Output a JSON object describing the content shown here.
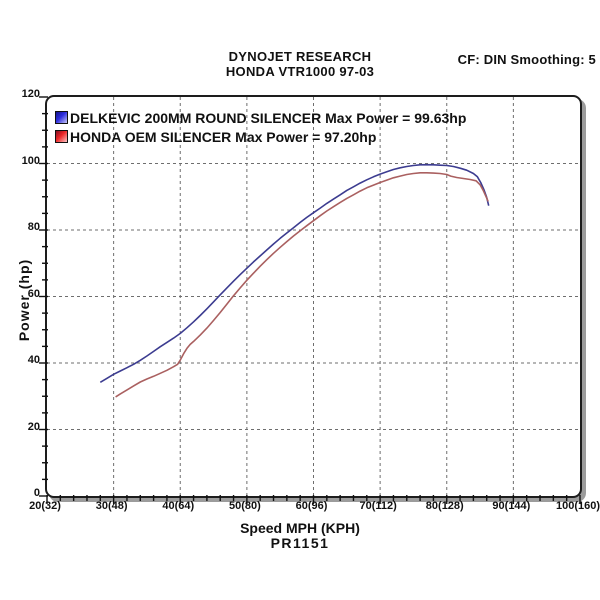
{
  "header": {
    "title_line1": "DYNOJET RESEARCH",
    "title_line2": "HONDA VTR1000 97-03",
    "cf_text": "CF: DIN  Smoothing: 5"
  },
  "legend": [
    {
      "label": "DELKEVIC 200MM ROUND SILENCER Max Power = 99.63hp",
      "swatch_color": "#2323dd",
      "swatch_name": "blue-series-swatch"
    },
    {
      "label": "HONDA OEM SILENCER Max Power = 97.20hp",
      "swatch_color": "#ee1c1c",
      "swatch_name": "red-series-swatch"
    }
  ],
  "footer": {
    "x_axis_title": "Speed MPH (KPH)",
    "run_id": "PR1151"
  },
  "chart_data": {
    "type": "line",
    "title": "DYNOJET RESEARCH — HONDA VTR1000 97-03",
    "xlabel": "Speed MPH (KPH)",
    "ylabel": "Power (hp)",
    "xlim": [
      20,
      100
    ],
    "ylim": [
      0,
      120
    ],
    "grid": "dashed",
    "legend_position": "top-left",
    "x_minor_step": 2,
    "y_minor_step": 5,
    "xticks": [
      {
        "mph": 20,
        "label": "20(32)"
      },
      {
        "mph": 30,
        "label": "30(48)"
      },
      {
        "mph": 40,
        "label": "40(64)"
      },
      {
        "mph": 50,
        "label": "50(80)"
      },
      {
        "mph": 60,
        "label": "60(96)"
      },
      {
        "mph": 70,
        "label": "70(112)"
      },
      {
        "mph": 80,
        "label": "80(128)"
      },
      {
        "mph": 90,
        "label": "90(144)"
      },
      {
        "mph": 100,
        "label": "100(160)"
      }
    ],
    "yticks": [
      0,
      20,
      40,
      60,
      80,
      100,
      120
    ],
    "series": [
      {
        "name": "DELKEVIC 200MM ROUND SILENCER",
        "max_power_hp": 99.63,
        "color": "#3c3c90",
        "points": [
          [
            28,
            34.2
          ],
          [
            29,
            35.4
          ],
          [
            30,
            36.6
          ],
          [
            31,
            37.6
          ],
          [
            32,
            38.6
          ],
          [
            33,
            39.6
          ],
          [
            34,
            40.8
          ],
          [
            35,
            42.1
          ],
          [
            36,
            43.5
          ],
          [
            37,
            44.9
          ],
          [
            38,
            46.2
          ],
          [
            39,
            47.5
          ],
          [
            40,
            48.9
          ],
          [
            41,
            50.6
          ],
          [
            42,
            52.4
          ],
          [
            43,
            54.3
          ],
          [
            44,
            56.3
          ],
          [
            45,
            58.4
          ],
          [
            46,
            60.5
          ],
          [
            47,
            62.6
          ],
          [
            48,
            64.6
          ],
          [
            49,
            66.6
          ],
          [
            50,
            68.5
          ],
          [
            51,
            70.4
          ],
          [
            52,
            72.2
          ],
          [
            53,
            74.0
          ],
          [
            54,
            75.8
          ],
          [
            55,
            77.5
          ],
          [
            56,
            79.1
          ],
          [
            57,
            80.7
          ],
          [
            58,
            82.3
          ],
          [
            59,
            83.8
          ],
          [
            60,
            85.2
          ],
          [
            61,
            86.6
          ],
          [
            62,
            88.0
          ],
          [
            63,
            89.3
          ],
          [
            64,
            90.6
          ],
          [
            65,
            91.9
          ],
          [
            66,
            93.0
          ],
          [
            67,
            94.1
          ],
          [
            68,
            95.1
          ],
          [
            69,
            96.0
          ],
          [
            70,
            96.8
          ],
          [
            71,
            97.5
          ],
          [
            72,
            98.2
          ],
          [
            73,
            98.7
          ],
          [
            74,
            99.1
          ],
          [
            75,
            99.4
          ],
          [
            76,
            99.6
          ],
          [
            77,
            99.63
          ],
          [
            78,
            99.6
          ],
          [
            79,
            99.5
          ],
          [
            80,
            99.4
          ],
          [
            81,
            99.1
          ],
          [
            82,
            98.6
          ],
          [
            83,
            98.0
          ],
          [
            84,
            97.0
          ],
          [
            84.6,
            96.0
          ],
          [
            85.1,
            94.3
          ],
          [
            85.6,
            92.0
          ],
          [
            86.0,
            89.8
          ],
          [
            86.3,
            87.3
          ]
        ]
      },
      {
        "name": "HONDA OEM SILENCER",
        "max_power_hp": 97.2,
        "color": "#aa6060",
        "points": [
          [
            30.3,
            29.8
          ],
          [
            31,
            30.7
          ],
          [
            32,
            31.9
          ],
          [
            33,
            33.1
          ],
          [
            34,
            34.3
          ],
          [
            35,
            35.2
          ],
          [
            36,
            36.0
          ],
          [
            37,
            36.9
          ],
          [
            38,
            37.8
          ],
          [
            39,
            38.9
          ],
          [
            39.6,
            39.6
          ],
          [
            40,
            40.9
          ],
          [
            40.5,
            42.8
          ],
          [
            41,
            44.4
          ],
          [
            41.5,
            45.6
          ],
          [
            42,
            46.5
          ],
          [
            43,
            48.4
          ],
          [
            44,
            50.5
          ],
          [
            45,
            52.8
          ],
          [
            46,
            55.2
          ],
          [
            47,
            57.7
          ],
          [
            48,
            60.2
          ],
          [
            49,
            62.6
          ],
          [
            50,
            64.9
          ],
          [
            51,
            67.0
          ],
          [
            52,
            69.1
          ],
          [
            53,
            71.1
          ],
          [
            54,
            73.0
          ],
          [
            55,
            74.8
          ],
          [
            56,
            76.5
          ],
          [
            57,
            78.2
          ],
          [
            58,
            79.8
          ],
          [
            59,
            81.3
          ],
          [
            60,
            82.8
          ],
          [
            61,
            84.3
          ],
          [
            62,
            85.7
          ],
          [
            63,
            87.0
          ],
          [
            64,
            88.3
          ],
          [
            65,
            89.5
          ],
          [
            66,
            90.6
          ],
          [
            67,
            91.7
          ],
          [
            68,
            92.7
          ],
          [
            69,
            93.5
          ],
          [
            70,
            94.3
          ],
          [
            71,
            95.0
          ],
          [
            72,
            95.7
          ],
          [
            73,
            96.2
          ],
          [
            74,
            96.7
          ],
          [
            75,
            97.0
          ],
          [
            76,
            97.2
          ],
          [
            77,
            97.2
          ],
          [
            78,
            97.1
          ],
          [
            79,
            97.0
          ],
          [
            80,
            96.7
          ],
          [
            80.6,
            96.2
          ],
          [
            81.5,
            95.8
          ],
          [
            82.5,
            95.5
          ],
          [
            83.5,
            95.2
          ],
          [
            84.4,
            94.8
          ],
          [
            85.0,
            93.6
          ],
          [
            85.5,
            91.8
          ],
          [
            86.0,
            89.6
          ],
          [
            86.2,
            88.6
          ]
        ]
      }
    ]
  }
}
